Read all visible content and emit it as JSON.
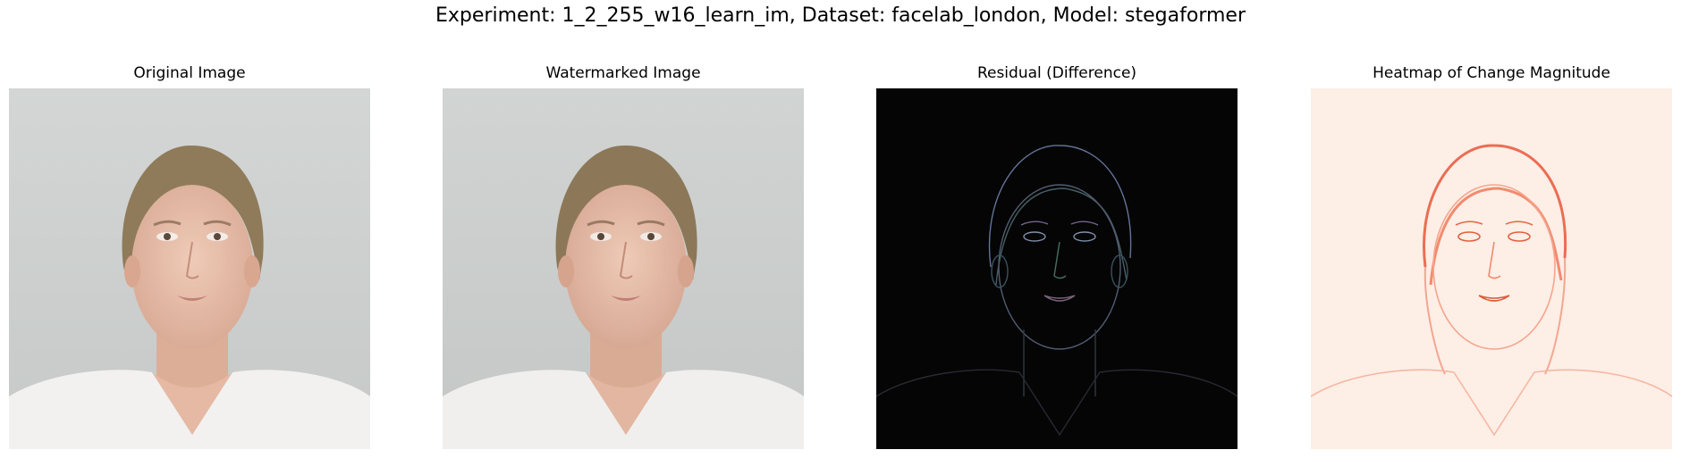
{
  "figure": {
    "title": "Experiment: 1_2_255_w16_learn_im, Dataset: facelab_london, Model: stegaformer"
  },
  "panels": [
    {
      "title": "Original Image",
      "image_type": "photo",
      "background": "#cfd2d1"
    },
    {
      "title": "Watermarked Image",
      "image_type": "photo",
      "background": "#cdd0cf"
    },
    {
      "title": "Residual (Difference)",
      "image_type": "residual",
      "background": "#050505"
    },
    {
      "title": "Heatmap of Change Magnitude",
      "image_type": "heatmap",
      "background": "#fdeee6",
      "colormap": "Reds"
    }
  ]
}
